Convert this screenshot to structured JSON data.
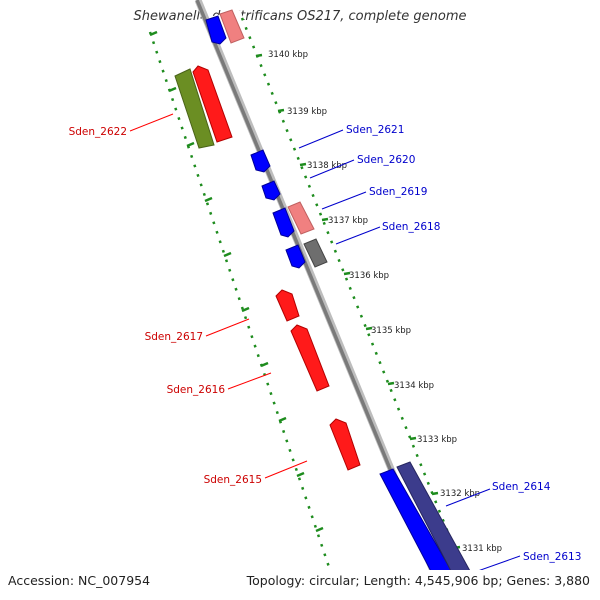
{
  "title": "Shewanella denitrificans OS217, complete genome",
  "footer": {
    "accession": "Accession: NC_007954",
    "topology": "Topology: circular; Length: 4,545,906 bp; Genes: 3,880"
  },
  "colors": {
    "backbone": "#8c8c8c",
    "ticks": "#1e8c1e",
    "forward_gene": "#ff0000",
    "forward_gene_light": "#f08080",
    "reverse_gene": "#0000ff",
    "reverse_gene_dark": "#3c3c8c",
    "olive_gene": "#6b8e23",
    "gray_gene": "#6e6e6e",
    "left_label": "#cc0000",
    "right_label": "#0000cc"
  },
  "ruler_labels": [
    "3140 kbp",
    "3139 kbp",
    "3138 kbp",
    "3137 kbp",
    "3136 kbp",
    "3135 kbp",
    "3134 kbp",
    "3133 kbp",
    "3132 kbp",
    "3131 kbp"
  ],
  "genes_left": [
    "Sden_2622",
    "Sden_2617",
    "Sden_2616",
    "Sden_2615"
  ],
  "genes_right": [
    "Sden_2621",
    "Sden_2620",
    "Sden_2619",
    "Sden_2618",
    "Sden_2614",
    "Sden_2613"
  ]
}
